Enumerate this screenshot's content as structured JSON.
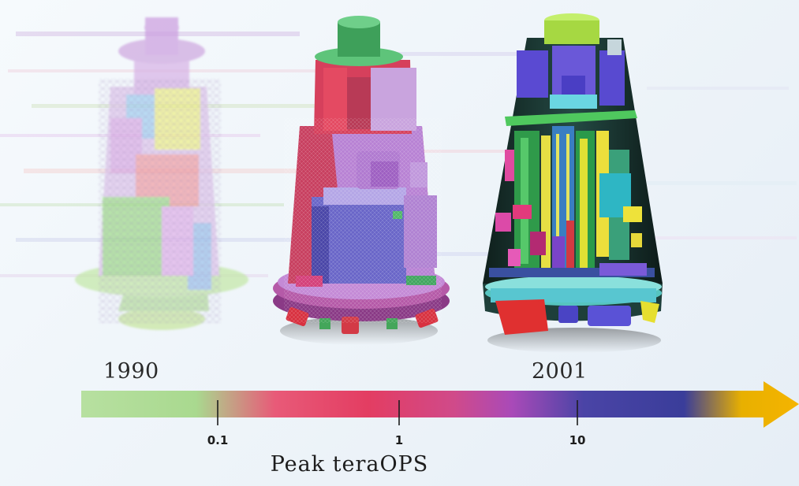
{
  "timeline": {
    "start_year": "1990",
    "end_year": "2001",
    "ticks": [
      "0.1",
      "1",
      "10"
    ],
    "axis_title": "Peak teraOPS"
  },
  "models": [
    {
      "name": "1990-wireframe-model",
      "style": "coarse mesh"
    },
    {
      "name": "mid-era-solid-model",
      "style": "finer mesh"
    },
    {
      "name": "2001-cutaway-model",
      "style": "detailed cutaway"
    }
  ],
  "colors": {
    "arrow_start": "#a9d98f",
    "arrow_mid1": "#e8415f",
    "arrow_mid2": "#b44ab8",
    "arrow_mid3": "#3b3e9a",
    "arrow_end": "#f4b000"
  }
}
